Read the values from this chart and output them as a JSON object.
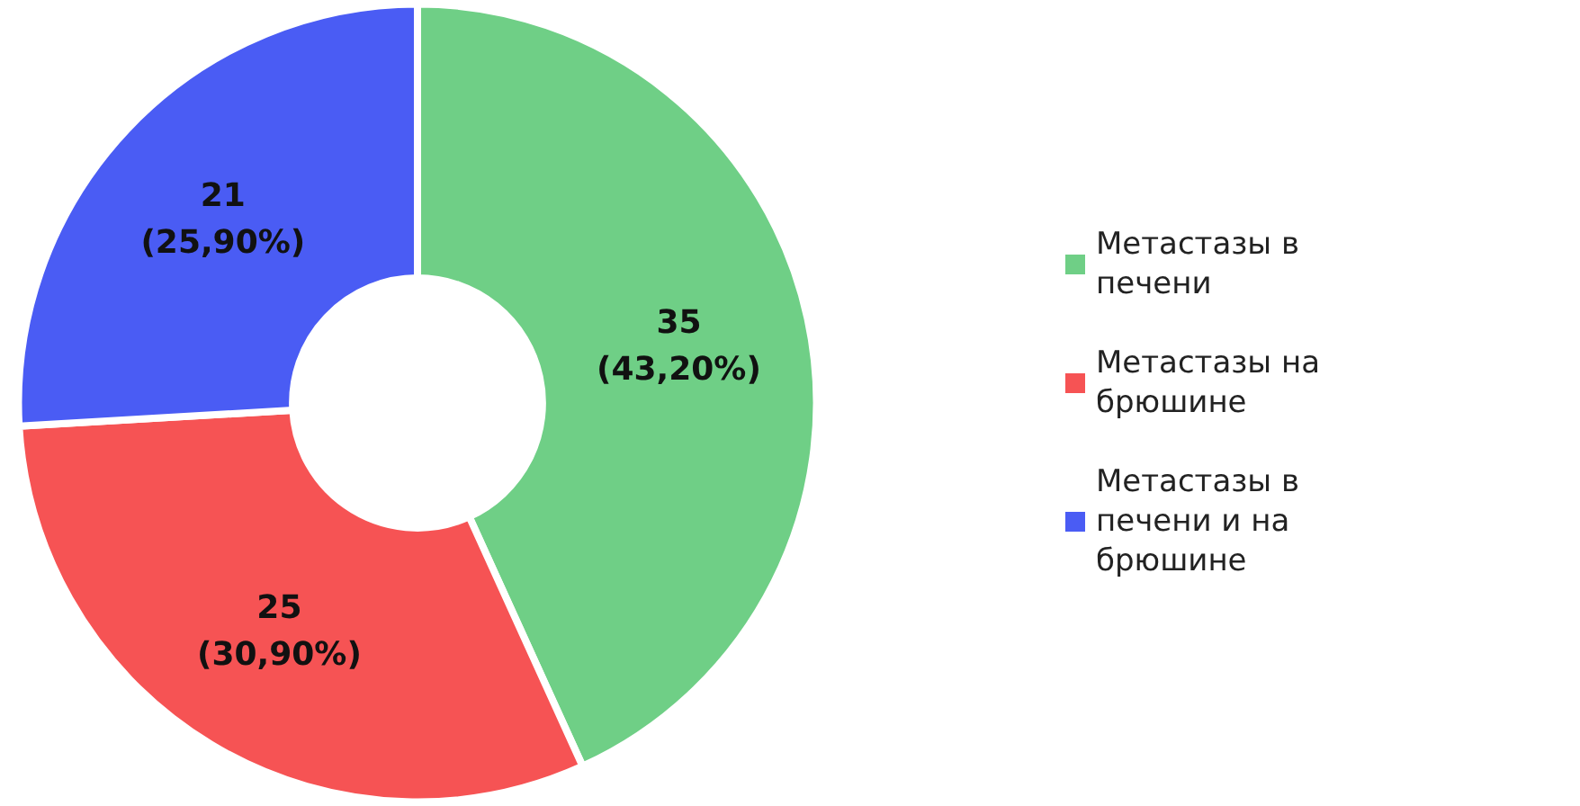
{
  "chart_data": {
    "type": "donut",
    "categories": [
      "Метастазы в печени",
      "Метастазы на брюшине",
      "Метастазы в печени и на брюшине"
    ],
    "values": [
      35,
      25,
      21
    ],
    "colors": [
      "#6fcf86",
      "#f65354",
      "#4a5cf4"
    ],
    "value_labels": [
      "35\n(43,20%)",
      "25\n(30,90%)",
      "21\n(25,90%)"
    ],
    "legend": "right"
  }
}
